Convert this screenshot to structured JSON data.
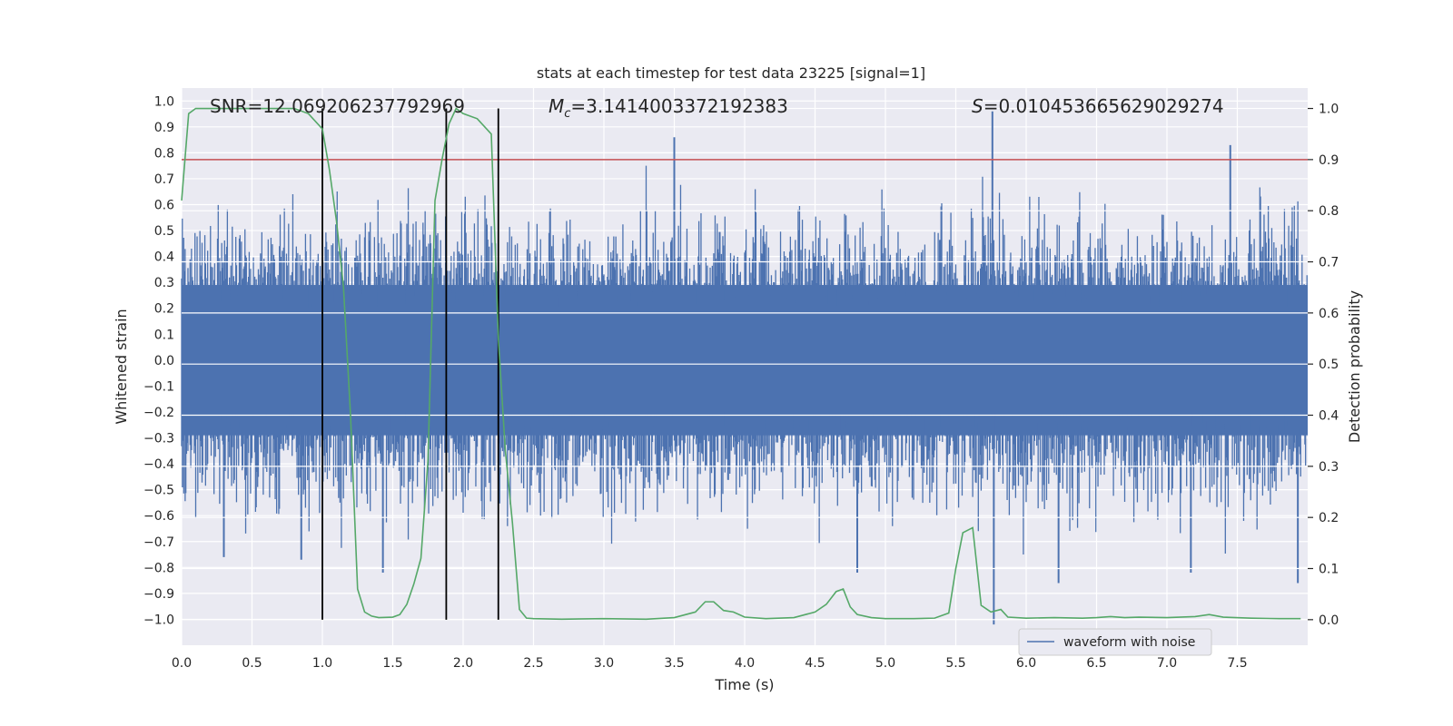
{
  "chart_data": {
    "type": "line",
    "title": "stats at each timestep for test data 23225 [signal=1]",
    "xlabel": "Time (s)",
    "ylabel": "Whitened strain",
    "y2label": "Detection probability",
    "xlim": [
      0.0,
      8.0
    ],
    "ylim": [
      -1.1,
      1.05
    ],
    "y2lim": [
      -0.05,
      1.04
    ],
    "xticks": [
      "0.0",
      "0.5",
      "1.0",
      "1.5",
      "2.0",
      "2.5",
      "3.0",
      "3.5",
      "4.0",
      "4.5",
      "5.0",
      "5.5",
      "6.0",
      "6.5",
      "7.0",
      "7.5"
    ],
    "yticks": [
      "1.0",
      "0.9",
      "0.8",
      "0.7",
      "0.6",
      "0.5",
      "0.4",
      "0.3",
      "0.2",
      "0.1",
      "0.0",
      "-0.1",
      "-0.2",
      "-0.3",
      "-0.4",
      "-0.5",
      "-0.6",
      "-0.7",
      "-0.8",
      "-0.9",
      "-1.0"
    ],
    "y2ticks": [
      "1.0",
      "0.9",
      "0.8",
      "0.7",
      "0.6",
      "0.5",
      "0.4",
      "0.3",
      "0.2",
      "0.1",
      "0.0"
    ],
    "annotations": {
      "snr": "SNR=12.069206237792969",
      "mc_symbol": "M",
      "mc_sub": "c",
      "mc_value": "=3.1414003372192383",
      "s_symbol": "S",
      "s_value": "=0.010453665629029274"
    },
    "vertical_lines": [
      1.0,
      1.88,
      2.25
    ],
    "threshold": 0.9,
    "legend": "waveform with noise",
    "waveform": {
      "name": "waveform with noise",
      "sample_step": 0.005,
      "envelope": 0.45,
      "spikes": [
        {
          "x": 3.5,
          "y": 0.86
        },
        {
          "x": 5.76,
          "y": 0.96
        },
        {
          "x": 5.77,
          "y": -1.02
        },
        {
          "x": 7.45,
          "y": 0.83
        },
        {
          "x": 7.93,
          "y": -0.86
        },
        {
          "x": 0.3,
          "y": -0.76
        },
        {
          "x": 0.85,
          "y": -0.77
        },
        {
          "x": 1.43,
          "y": -0.82
        },
        {
          "x": 6.23,
          "y": -0.86
        },
        {
          "x": 7.17,
          "y": -0.82
        },
        {
          "x": 4.8,
          "y": -0.82
        }
      ]
    },
    "detection_probability": {
      "name": "detection probability",
      "x": [
        0.0,
        0.05,
        0.1,
        0.2,
        0.4,
        0.6,
        0.8,
        0.9,
        1.0,
        1.05,
        1.1,
        1.15,
        1.2,
        1.25,
        1.3,
        1.35,
        1.4,
        1.5,
        1.55,
        1.6,
        1.65,
        1.7,
        1.75,
        1.8,
        1.85,
        1.9,
        1.95,
        2.0,
        2.1,
        2.2,
        2.25,
        2.3,
        2.35,
        2.4,
        2.45,
        2.5,
        2.7,
        3.0,
        3.3,
        3.5,
        3.65,
        3.72,
        3.78,
        3.85,
        3.92,
        4.0,
        4.15,
        4.35,
        4.5,
        4.58,
        4.65,
        4.7,
        4.75,
        4.8,
        4.9,
        5.0,
        5.2,
        5.35,
        5.45,
        5.5,
        5.55,
        5.62,
        5.68,
        5.75,
        5.82,
        5.87,
        6.0,
        6.2,
        6.4,
        6.5,
        6.6,
        6.7,
        6.8,
        7.0,
        7.2,
        7.3,
        7.4,
        7.6,
        7.8,
        7.95
      ],
      "y": [
        0.82,
        0.99,
        1.0,
        1.0,
        1.0,
        1.0,
        1.0,
        0.99,
        0.96,
        0.88,
        0.78,
        0.65,
        0.4,
        0.06,
        0.015,
        0.007,
        0.004,
        0.005,
        0.01,
        0.03,
        0.07,
        0.12,
        0.31,
        0.82,
        0.9,
        0.97,
        1.0,
        0.99,
        0.98,
        0.95,
        0.55,
        0.33,
        0.19,
        0.02,
        0.003,
        0.002,
        0.001,
        0.002,
        0.001,
        0.004,
        0.015,
        0.035,
        0.035,
        0.018,
        0.015,
        0.005,
        0.002,
        0.004,
        0.015,
        0.03,
        0.055,
        0.06,
        0.025,
        0.01,
        0.004,
        0.002,
        0.002,
        0.003,
        0.013,
        0.1,
        0.17,
        0.18,
        0.028,
        0.015,
        0.02,
        0.005,
        0.003,
        0.004,
        0.003,
        0.004,
        0.006,
        0.004,
        0.005,
        0.004,
        0.006,
        0.01,
        0.005,
        0.003,
        0.002,
        0.002
      ]
    },
    "colors": {
      "background": "#eaeaf2",
      "grid": "#ffffff",
      "waveform": "#4c72b0",
      "probability": "#55a868",
      "threshold": "#c44e52",
      "vline": "#000000"
    }
  }
}
